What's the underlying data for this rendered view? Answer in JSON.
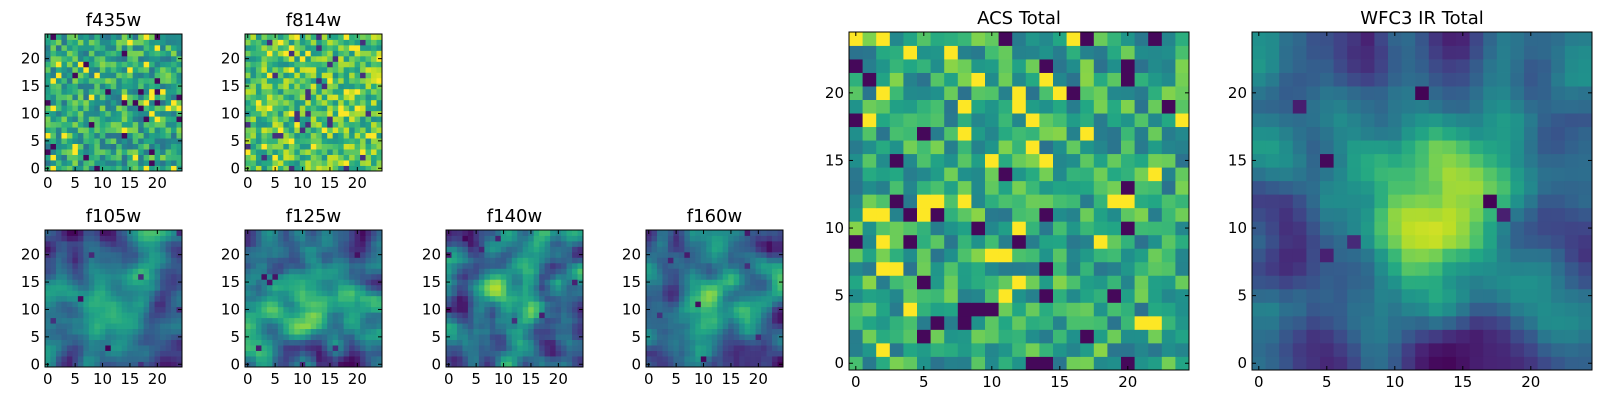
{
  "chart_data": [
    {
      "type": "heatmap",
      "title": "f435w",
      "grid_size": 25,
      "texture": "noisy",
      "xlim": [
        -0.5,
        24.5
      ],
      "ylim": [
        -0.5,
        24.5
      ],
      "xticks": [
        0,
        5,
        10,
        15,
        20
      ],
      "yticks": [
        0,
        5,
        10,
        15,
        20
      ],
      "colormap": "viridis"
    },
    {
      "type": "heatmap",
      "title": "f814w",
      "grid_size": 25,
      "texture": "noisy-bright",
      "xlim": [
        -0.5,
        24.5
      ],
      "ylim": [
        -0.5,
        24.5
      ],
      "xticks": [
        0,
        5,
        10,
        15,
        20
      ],
      "yticks": [
        0,
        5,
        10,
        15,
        20
      ],
      "colormap": "viridis"
    },
    {
      "type": "heatmap",
      "title": "f105w",
      "grid_size": 25,
      "texture": "smooth",
      "xlim": [
        -0.5,
        24.5
      ],
      "ylim": [
        -0.5,
        24.5
      ],
      "xticks": [
        0,
        5,
        10,
        15,
        20
      ],
      "yticks": [
        0,
        5,
        10,
        15,
        20
      ],
      "colormap": "viridis"
    },
    {
      "type": "heatmap",
      "title": "f125w",
      "grid_size": 25,
      "texture": "smooth",
      "xlim": [
        -0.5,
        24.5
      ],
      "ylim": [
        -0.5,
        24.5
      ],
      "xticks": [
        0,
        5,
        10,
        15,
        20
      ],
      "yticks": [
        0,
        5,
        10,
        15,
        20
      ],
      "colormap": "viridis"
    },
    {
      "type": "heatmap",
      "title": "f140w",
      "grid_size": 25,
      "texture": "smooth",
      "xlim": [
        -0.5,
        24.5
      ],
      "ylim": [
        -0.5,
        24.5
      ],
      "xticks": [
        0,
        5,
        10,
        15,
        20
      ],
      "yticks": [
        0,
        5,
        10,
        15,
        20
      ],
      "colormap": "viridis"
    },
    {
      "type": "heatmap",
      "title": "f160w",
      "grid_size": 25,
      "texture": "smooth",
      "xlim": [
        -0.5,
        24.5
      ],
      "ylim": [
        -0.5,
        24.5
      ],
      "xticks": [
        0,
        5,
        10,
        15,
        20
      ],
      "yticks": [
        0,
        5,
        10,
        15,
        20
      ],
      "colormap": "viridis"
    },
    {
      "type": "heatmap",
      "title": "ACS Total",
      "grid_size": 25,
      "texture": "noisy",
      "xlim": [
        -0.5,
        24.5
      ],
      "ylim": [
        -0.5,
        24.5
      ],
      "xticks": [
        0,
        5,
        10,
        15,
        20
      ],
      "yticks": [
        0,
        5,
        10,
        15,
        20
      ],
      "colormap": "viridis"
    },
    {
      "type": "heatmap",
      "title": "WFC3 IR Total",
      "grid_size": 25,
      "texture": "smooth-peak",
      "xlim": [
        -0.5,
        24.5
      ],
      "ylim": [
        -0.5,
        24.5
      ],
      "xticks": [
        0,
        5,
        10,
        15,
        20
      ],
      "yticks": [
        0,
        5,
        10,
        15,
        20
      ],
      "colormap": "viridis"
    }
  ]
}
